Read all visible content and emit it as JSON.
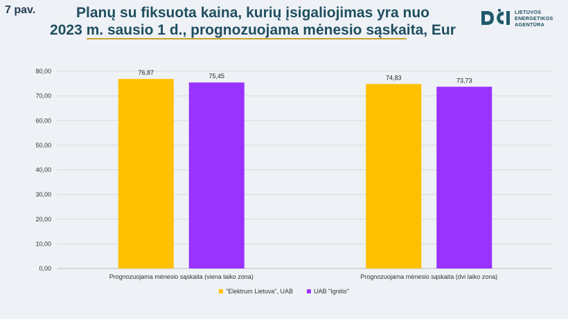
{
  "figure_label": "7 pav.",
  "title_line1": "Planų su fiksuota kaina, kurių įsigaliojimas yra nuo",
  "title_line2": "2023 m. sausio 1 d., prognozuojama mėnesio sąskaita, Eur",
  "logo": {
    "icon": "vert-logo-icon",
    "line1": "LIETUVOS",
    "line2": "ENERGETIKOS",
    "line3": "AGENTŪRA"
  },
  "chart_data": {
    "type": "bar",
    "title": "",
    "xlabel": "",
    "ylabel": "",
    "categories": [
      "Prognozuojama mėnesio sąskaita (viena laiko zona)",
      "Prognozuojama mėnesio sąskaita (dvi laiko zona)"
    ],
    "series": [
      {
        "name": "\"Elektrum Lietuva\", UAB",
        "color": "#ffc000",
        "values": [
          76.87,
          74.83
        ],
        "labels": [
          "76,87",
          "74,83"
        ]
      },
      {
        "name": "UAB \"Ignitis\"",
        "color": "#9933ff",
        "values": [
          75.45,
          73.73
        ],
        "labels": [
          "75,45",
          "73,73"
        ]
      }
    ],
    "ylim": [
      0,
      80
    ],
    "yticks": [
      0,
      10,
      20,
      30,
      40,
      50,
      60,
      70,
      80
    ],
    "ytick_labels": [
      "0,00",
      "10,00",
      "20,00",
      "30,00",
      "40,00",
      "50,00",
      "60,00",
      "70,00",
      "80,00"
    ],
    "grid": true,
    "legend_position": "bottom"
  }
}
